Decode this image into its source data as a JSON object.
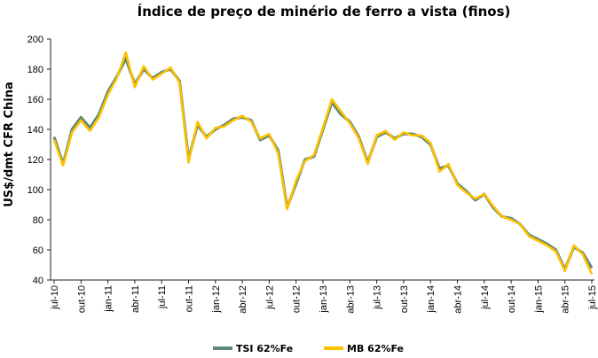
{
  "chart_data": {
    "type": "line",
    "title": "Índice de preço de minério de ferro a vista (finos)",
    "xlabel": "",
    "ylabel": "US$/dmt CFR China",
    "ylim": [
      40,
      200
    ],
    "yticks": [
      40,
      60,
      80,
      100,
      120,
      140,
      160,
      180,
      200
    ],
    "categories": [
      "jul-10",
      "out-10",
      "jan-11",
      "abr-11",
      "jul-11",
      "out-11",
      "jan-12",
      "abr-12",
      "jul-12",
      "out-12",
      "jan-13",
      "abr-13",
      "jul-13",
      "out-13",
      "jan-14",
      "abr-14",
      "jul-14",
      "out-14",
      "jan-15",
      "abr-15",
      "jul-15"
    ],
    "grid": false,
    "legend_position": "bottom",
    "series": [
      {
        "name": "TSI 62%Fe",
        "color": "#5f8a76",
        "x": [
          "jul-10",
          "aug-10",
          "sep-10",
          "out-10",
          "nov-10",
          "dec-10",
          "jan-11",
          "feb-11",
          "mar-11",
          "abr-11",
          "may-11",
          "jun-11",
          "jul-11",
          "aug-11",
          "sep-11",
          "out-11",
          "nov-11",
          "dec-11",
          "jan-12",
          "feb-12",
          "mar-12",
          "abr-12",
          "may-12",
          "jun-12",
          "jul-12",
          "aug-12",
          "sep-12",
          "out-12",
          "nov-12",
          "dec-12",
          "jan-13",
          "feb-13",
          "mar-13",
          "abr-13",
          "may-13",
          "jun-13",
          "jul-13",
          "aug-13",
          "sep-13",
          "out-13",
          "nov-13",
          "dec-13",
          "jan-14",
          "feb-14",
          "mar-14",
          "abr-14",
          "may-14",
          "jun-14",
          "jul-14",
          "aug-14",
          "sep-14",
          "out-14",
          "nov-14",
          "dec-14",
          "jan-15",
          "feb-15",
          "mar-15",
          "abr-15",
          "may-15",
          "jun-15",
          "jul-15"
        ],
        "values": [
          135,
          117,
          140,
          148,
          141,
          150,
          165,
          175,
          187,
          170,
          180,
          174,
          178,
          180,
          172,
          120,
          143,
          135,
          140,
          143,
          147,
          148,
          146,
          133,
          136,
          126,
          88,
          104,
          120,
          122,
          140,
          158,
          150,
          145,
          135,
          118,
          135,
          138,
          134,
          137,
          137,
          135,
          130,
          114,
          116,
          104,
          99,
          93,
          97,
          88,
          82,
          81,
          77,
          70,
          67,
          64,
          60,
          47,
          62,
          58,
          48
        ]
      },
      {
        "name": "MB 62%Fe",
        "color": "#ffc000",
        "x": [
          "jul-10",
          "aug-10",
          "sep-10",
          "out-10",
          "nov-10",
          "dec-10",
          "jan-11",
          "feb-11",
          "mar-11",
          "abr-11",
          "may-11",
          "jun-11",
          "jul-11",
          "aug-11",
          "sep-11",
          "out-11",
          "nov-11",
          "dec-11",
          "jan-12",
          "feb-12",
          "mar-12",
          "abr-12",
          "may-12",
          "jun-12",
          "jul-12",
          "aug-12",
          "sep-12",
          "out-12",
          "nov-12",
          "dec-12",
          "jan-13",
          "feb-13",
          "mar-13",
          "abr-13",
          "may-13",
          "jun-13",
          "jul-13",
          "aug-13",
          "sep-13",
          "out-13",
          "nov-13",
          "dec-13",
          "jan-14",
          "feb-14",
          "mar-14",
          "abr-14",
          "may-14",
          "jun-14",
          "jul-14",
          "aug-14",
          "sep-14",
          "out-14",
          "nov-14",
          "dec-14",
          "jan-15",
          "feb-15",
          "mar-15",
          "abr-15",
          "may-15",
          "jun-15",
          "jul-15"
        ],
        "values": [
          133,
          116,
          138,
          146,
          139,
          148,
          163,
          174,
          191,
          168,
          182,
          173,
          177,
          181,
          171,
          118,
          145,
          134,
          141,
          142,
          146,
          149,
          145,
          134,
          137,
          124,
          87,
          106,
          119,
          123,
          141,
          160,
          152,
          144,
          134,
          117,
          136,
          139,
          133,
          138,
          136,
          136,
          131,
          112,
          117,
          103,
          98,
          94,
          97,
          89,
          82,
          80,
          77,
          69,
          66,
          63,
          59,
          46,
          63,
          57,
          44
        ]
      }
    ]
  }
}
